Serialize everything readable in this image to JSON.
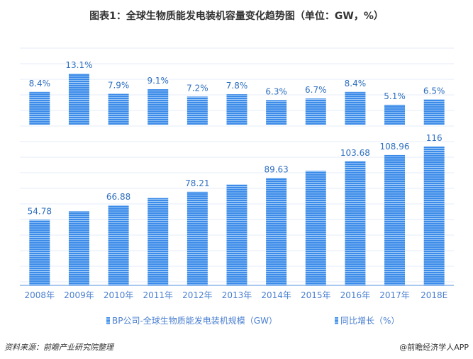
{
  "title": "图表1：全球生物质能发电装机容量变化趋势图（单位：GW，%）",
  "chart_data": {
    "type": "bar",
    "title": "图表1：全球生物质能发电装机容量变化趋势图（单位：GW，%）",
    "categories": [
      "2008年",
      "2009年",
      "2010年",
      "2011年",
      "2012年",
      "2013年",
      "2014年",
      "2015年",
      "2016年",
      "2017年",
      "2018E"
    ],
    "series": [
      {
        "name": "BP公司-全球生物质能发电装机规模（GW）",
        "values": [
          54.78,
          61.96,
          66.88,
          72.97,
          78.21,
          84.31,
          89.63,
          95.63,
          103.68,
          108.96,
          116
        ],
        "labels": [
          "54.78",
          null,
          "66.88",
          null,
          "78.21",
          null,
          "89.63",
          null,
          "103.68",
          "108.96",
          "116"
        ]
      },
      {
        "name": "同比增长（%）",
        "values": [
          8.4,
          13.1,
          7.9,
          9.1,
          7.2,
          7.8,
          6.3,
          6.7,
          8.4,
          5.1,
          6.5
        ],
        "labels": [
          "8.4%",
          "13.1%",
          "7.9%",
          "9.1%",
          "7.2%",
          "7.8%",
          "6.3%",
          "6.7%",
          "8.4%",
          "5.1%",
          "6.5%"
        ]
      }
    ],
    "grid": true,
    "legend": "bottom",
    "colors": {
      "bar": "#3c8be8",
      "label": "#2e6fbf",
      "axis": "#4a7fd0"
    }
  },
  "source": "资料来源：前瞻产业研究院整理",
  "brand": "@前瞻经济学人APP"
}
